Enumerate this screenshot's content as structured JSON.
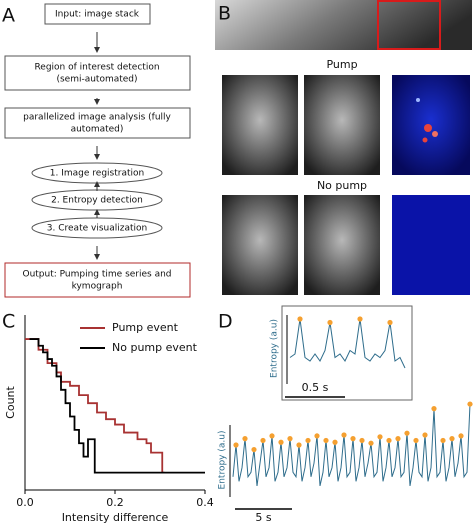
{
  "panel_labels": [
    "A",
    "B",
    "C",
    "D"
  ],
  "flowchart": {
    "steps": [
      [
        "Input: image stack"
      ],
      [
        "Region of interest detection",
        "(semi-automated)"
      ],
      [
        "parallelized image analysis (fully",
        "automated)"
      ],
      [
        "1. Image registration"
      ],
      [
        "2. Entropy detection"
      ],
      [
        "3. Create visualization"
      ],
      [
        "Output: Pumping time series and",
        "kymograph"
      ]
    ]
  },
  "images": {
    "pump": "Pump",
    "no_pump": "No pump"
  },
  "chart_data": [
    {
      "type": "step",
      "xlabel": "Intensity difference",
      "ylabel": "Count",
      "xlim": [
        0,
        0.4
      ],
      "ylim": [
        -0.13,
        1.18
      ],
      "xticks": [
        {
          "value": 0,
          "label": "0.0"
        },
        0.2,
        0.4
      ],
      "legend": "upper right",
      "series": [
        {
          "name": "Pump event",
          "color": "#a83232",
          "x": [
            0,
            0.03,
            0.05,
            0.07,
            0.08,
            0.1,
            0.12,
            0.14,
            0.16,
            0.18,
            0.2,
            0.22,
            0.25,
            0.27,
            0.28,
            0.305,
            0.31
          ],
          "values": [
            1,
            0.92,
            0.82,
            0.75,
            0.68,
            0.65,
            0.58,
            0.52,
            0.45,
            0.4,
            0.36,
            0.3,
            0.25,
            0.22,
            0.15,
            0,
            0
          ]
        },
        {
          "name": "No pump event",
          "color": "#000000",
          "x": [
            0.01,
            0.03,
            0.04,
            0.05,
            0.06,
            0.07,
            0.08,
            0.09,
            0.1,
            0.11,
            0.12,
            0.13,
            0.14,
            0.155,
            0.4
          ],
          "values": [
            1,
            0.95,
            0.9,
            0.85,
            0.8,
            0.72,
            0.62,
            0.52,
            0.42,
            0.32,
            0.22,
            0.12,
            0.25,
            0,
            0
          ]
        }
      ]
    },
    {
      "type": "trace",
      "ylabel": "Entropy (a.u)",
      "scalebar": "5 s",
      "color": "#2f6d8c",
      "marker_color": "#f5a030",
      "ylim": [
        0,
        1.1
      ],
      "values": [
        0.2,
        0.55,
        0.15,
        0.3,
        0.62,
        0.2,
        0.25,
        0.5,
        0.1,
        0.35,
        0.6,
        0.2,
        0.3,
        0.65,
        0.15,
        0.25,
        0.58,
        0.2,
        0.3,
        0.62,
        0.25,
        0.2,
        0.55,
        0.15,
        0.3,
        0.6,
        0.2,
        0.35,
        0.65,
        0.1,
        0.25,
        0.6,
        0.2,
        0.3,
        0.58,
        0.15,
        0.3,
        0.66,
        0.2,
        0.25,
        0.62,
        0.15,
        0.3,
        0.6,
        0.2,
        0.35,
        0.57,
        0.2,
        0.25,
        0.64,
        0.15,
        0.3,
        0.6,
        0.2,
        0.3,
        0.62,
        0.2,
        0.25,
        0.68,
        0.1,
        0.3,
        0.6,
        0.25,
        0.2,
        0.66,
        0.15,
        0.3,
        0.95,
        0.2,
        0.25,
        0.6,
        0.15,
        0.3,
        0.62,
        0.2,
        0.35,
        0.65,
        0.2,
        0.25,
        1.0
      ],
      "peaks": [
        1,
        4,
        7,
        10,
        13,
        16,
        19,
        22,
        25,
        28,
        31,
        34,
        37,
        40,
        43,
        46,
        49,
        52,
        55,
        58,
        61,
        64,
        67,
        70,
        73,
        76,
        79
      ]
    },
    {
      "type": "trace",
      "ylabel": "Entropy (a.u)",
      "scalebar": "0.5 s",
      "color": "#2f6d8c",
      "marker_color": "#f5a030",
      "ylim": [
        0,
        1
      ],
      "values": [
        0.35,
        0.4,
        0.9,
        0.35,
        0.3,
        0.4,
        0.3,
        0.45,
        0.85,
        0.35,
        0.4,
        0.3,
        0.45,
        0.4,
        0.9,
        0.35,
        0.3,
        0.4,
        0.35,
        0.45,
        0.85,
        0.3,
        0.35,
        0.2
      ],
      "peaks": [
        2,
        8,
        14,
        20
      ]
    }
  ]
}
